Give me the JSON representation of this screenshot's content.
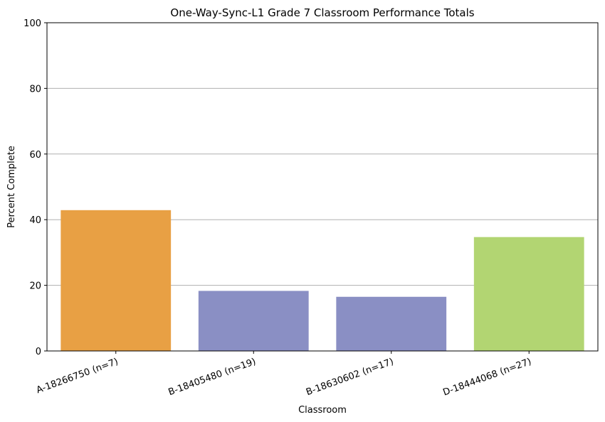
{
  "chart_data": {
    "type": "bar",
    "title": "One-Way-Sync-L1 Grade 7 Classroom Performance Totals",
    "xlabel": "Classroom",
    "ylabel": "Percent Complete",
    "ylim": [
      0,
      100
    ],
    "yticks": [
      0,
      20,
      40,
      60,
      80,
      100
    ],
    "grid": "horizontal",
    "categories": [
      "A-18266750 (n=7)",
      "B-18405480 (n=19)",
      "B-18630602 (n=17)",
      "D-18444068 (n=27)"
    ],
    "values": [
      42.9,
      18.3,
      16.5,
      34.7
    ],
    "colors": [
      "#e8a044",
      "#8a8fc4",
      "#8a8fc4",
      "#b2d572"
    ]
  }
}
